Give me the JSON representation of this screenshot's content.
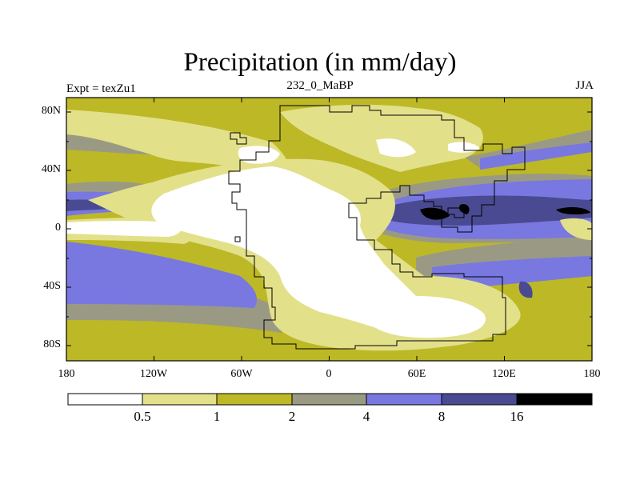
{
  "title": "Precipitation (in mm/day)",
  "left_label": "Expt = texZu1",
  "center_label": "232_0_MaBP",
  "right_label": "JJA",
  "lat_ticks": [
    "80N",
    "40N",
    "0",
    "40S",
    "80S"
  ],
  "lon_ticks": [
    "180",
    "120W",
    "60W",
    "0",
    "60E",
    "120E",
    "180"
  ],
  "colorbar": {
    "labels": [
      "0.5",
      "1",
      "2",
      "4",
      "8",
      "16"
    ],
    "colors": [
      "#ffffff",
      "#e3e08a",
      "#bdb826",
      "#9a9a84",
      "#7878e0",
      "#4a4a92",
      "#000000"
    ]
  }
}
